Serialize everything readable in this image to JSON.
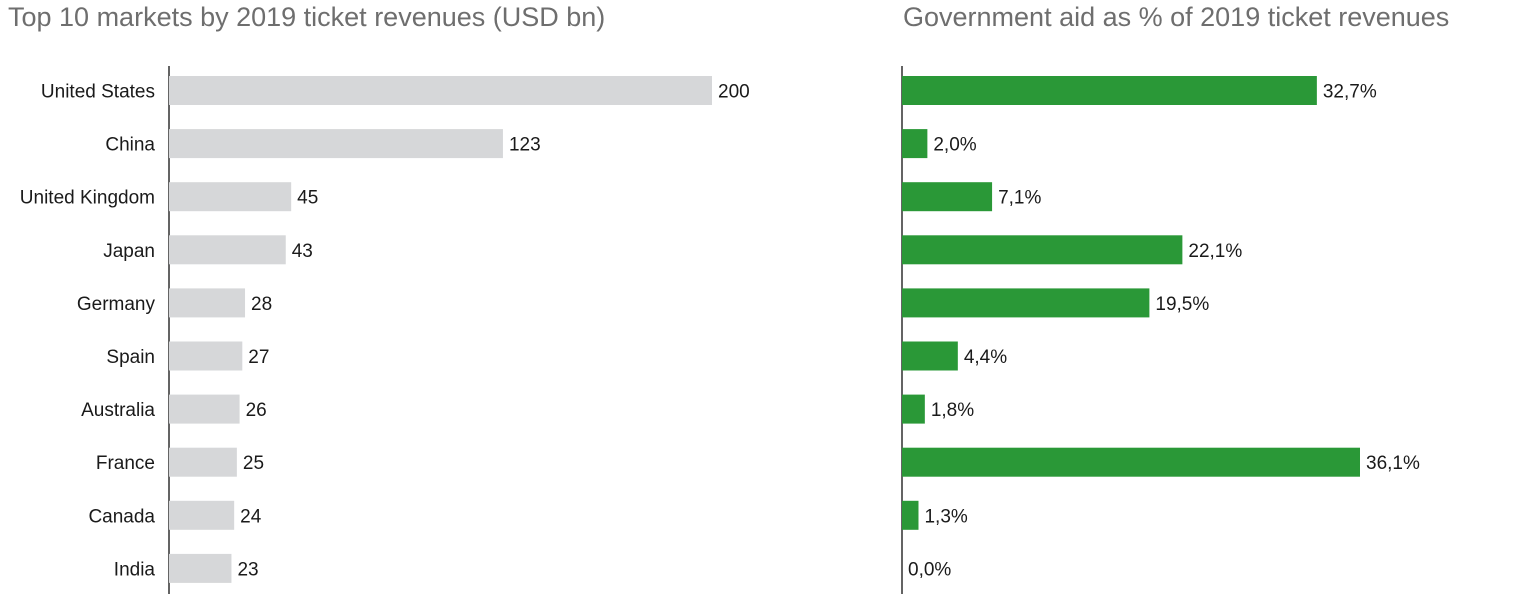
{
  "chart_data": [
    {
      "type": "bar",
      "orientation": "horizontal",
      "title": "Top 10 markets by 2019 ticket revenues (USD bn)",
      "categories": [
        "United States",
        "China",
        "United Kingdom",
        "Japan",
        "Germany",
        "Spain",
        "Australia",
        "France",
        "Canada",
        "India"
      ],
      "values": [
        200,
        123,
        45,
        43,
        28,
        27,
        26,
        25,
        24,
        23
      ],
      "value_labels": [
        "200",
        "123",
        "45",
        "43",
        "28",
        "27",
        "26",
        "25",
        "24",
        "23"
      ],
      "xlim": [
        0,
        200
      ],
      "grid": false,
      "color": "#d6d7d9"
    },
    {
      "type": "bar",
      "orientation": "horizontal",
      "title": "Government aid as % of 2019 ticket revenues",
      "categories": [
        "United States",
        "China",
        "United Kingdom",
        "Japan",
        "Germany",
        "Spain",
        "Australia",
        "France",
        "Canada",
        "India"
      ],
      "values": [
        32.7,
        2.0,
        7.1,
        22.1,
        19.5,
        4.4,
        1.8,
        36.1,
        1.3,
        0.0
      ],
      "value_labels": [
        "32,7%",
        "2,0%",
        "7,1%",
        "22,1%",
        "19,5%",
        "4,4%",
        "1,8%",
        "36,1%",
        "1,3%",
        "0,0%"
      ],
      "xlim": [
        0,
        36.1
      ],
      "grid": false,
      "color": "#2a9837"
    }
  ]
}
